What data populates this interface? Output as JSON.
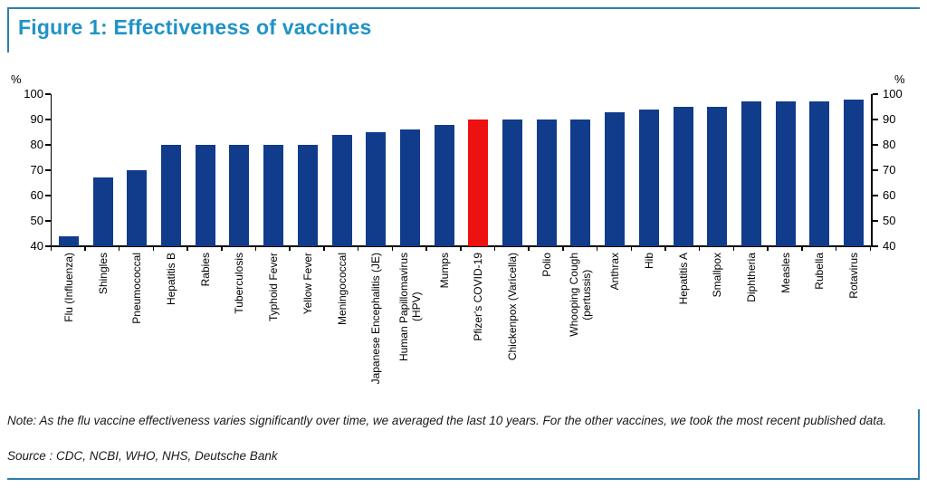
{
  "figure": {
    "title": "Figure 1: Effectiveness of vaccines",
    "left_axis_unit": "%",
    "right_axis_unit": "%",
    "note": "Note: As the flu vaccine effectiveness varies significantly over time, we averaged the last 10 years. For the other vaccines, we took the most recent published data.",
    "source": "Source : CDC, NCBI, WHO, NHS, Deutsche Bank"
  },
  "chart_data": {
    "type": "bar",
    "title": "Figure 1: Effectiveness of vaccines",
    "xlabel": "",
    "ylabel": "%",
    "ylim": [
      40,
      100
    ],
    "yticks": [
      40,
      50,
      60,
      70,
      80,
      90,
      100
    ],
    "grid": false,
    "legend_position": "none",
    "categories": [
      "Flu (Influenza)",
      "Shingles",
      "Pneumococcal",
      "Hepatitis B",
      "Rabies",
      "Tuberculosis",
      "Typhoid Fever",
      "Yellow Fever",
      "Meningococcal",
      "Japanese Encephalitis (JE)",
      "Human Papillomavirus\n(HPV)",
      "Mumps",
      "Pfizer's COVID-19",
      "Chickenpox (Varicella)",
      "Polio",
      "Whooping Cough\n(pertussis)",
      "Anthrax",
      "Hib",
      "Hepatitis A",
      "Smallpox",
      "Diphtheria",
      "Measles",
      "Rubella",
      "Rotavirus"
    ],
    "values": [
      44,
      67,
      70,
      80,
      80,
      80,
      80,
      80,
      84,
      85,
      86,
      88,
      90,
      90,
      90,
      90,
      93,
      94,
      95,
      95,
      97,
      97,
      97,
      98
    ],
    "highlight_index": 12,
    "highlight_category": "Pfizer's COVID-19",
    "colors": {
      "bar": "#113c8c",
      "highlight_bar": "#ee1111",
      "title": "#2093c6",
      "rule": "#2e7ea8",
      "axis": "#000000"
    }
  }
}
